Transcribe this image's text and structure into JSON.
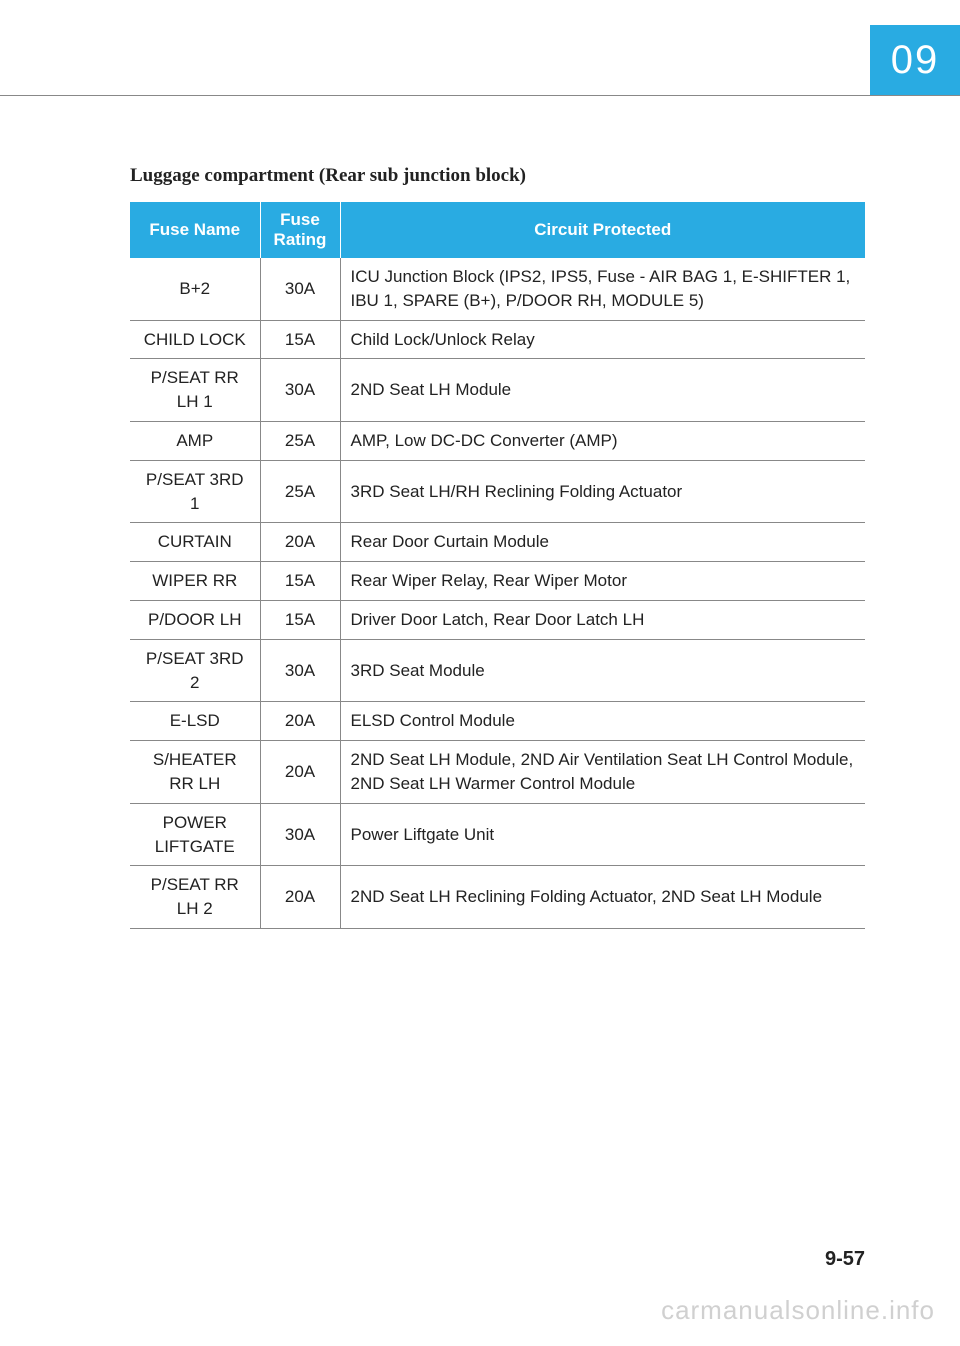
{
  "chapter": "09",
  "section_title": "Luggage compartment (Rear sub junction block)",
  "table": {
    "columns": [
      "Fuse Name",
      "Fuse Rating",
      "Circuit Protected"
    ],
    "rows": [
      [
        "B+2",
        "30A",
        "ICU Junction Block (IPS2, IPS5, Fuse - AIR BAG 1, E-SHIFTER 1, IBU 1, SPARE (B+), P/DOOR RH, MODULE 5)"
      ],
      [
        "CHILD LOCK",
        "15A",
        "Child Lock/Unlock Relay"
      ],
      [
        "P/SEAT RR LH 1",
        "30A",
        "2ND Seat LH Module"
      ],
      [
        "AMP",
        "25A",
        "AMP, Low DC-DC Converter (AMP)"
      ],
      [
        "P/SEAT 3RD 1",
        "25A",
        "3RD Seat LH/RH Reclining Folding Actuator"
      ],
      [
        "CURTAIN",
        "20A",
        "Rear Door Curtain Module"
      ],
      [
        "WIPER RR",
        "15A",
        "Rear Wiper Relay, Rear Wiper Motor"
      ],
      [
        "P/DOOR LH",
        "15A",
        "Driver Door Latch, Rear Door Latch LH"
      ],
      [
        "P/SEAT 3RD 2",
        "30A",
        "3RD Seat Module"
      ],
      [
        "E-LSD",
        "20A",
        "ELSD Control Module"
      ],
      [
        "S/HEATER RR LH",
        "20A",
        "2ND Seat LH Module, 2ND Air Ventilation Seat LH Control Module, 2ND Seat LH Warmer Control Module"
      ],
      [
        "POWER LIFTGATE",
        "30A",
        "Power Liftgate Unit"
      ],
      [
        "P/SEAT RR LH 2",
        "20A",
        "2ND Seat LH Reclining Folding Actuator, 2ND Seat LH Module"
      ]
    ],
    "header_bg": "#29abe2",
    "header_fg": "#ffffff",
    "border_color": "#888888",
    "text_color": "#222222"
  },
  "page_number": "9-57",
  "watermark": "carmanualsonline.info"
}
